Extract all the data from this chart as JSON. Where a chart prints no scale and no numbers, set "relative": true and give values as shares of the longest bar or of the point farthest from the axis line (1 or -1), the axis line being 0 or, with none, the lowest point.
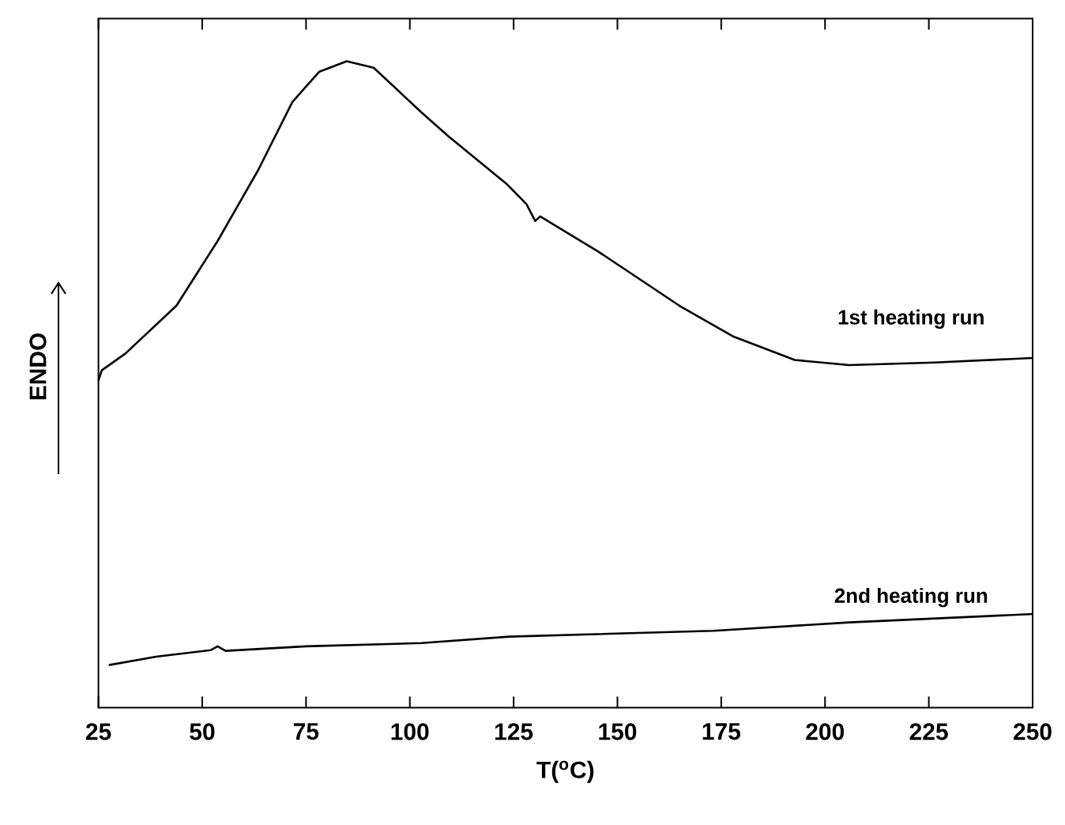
{
  "chart_data": {
    "type": "line",
    "xlabel": "T($^{o}$C)",
    "ylabel": "ENDO",
    "relative": true,
    "xlim": [
      25,
      250
    ],
    "xticks": [
      25,
      50,
      75,
      100,
      125,
      150,
      175,
      200,
      225,
      250
    ],
    "tick_labels": "x",
    "marker": "none",
    "line_style": "solid",
    "series": [
      {
        "name": "1st heating run",
        "color": "#000000",
        "x": [
          25,
          25.8,
          31.5,
          43.8,
          53.7,
          63.5,
          71.7,
          78.2,
          84.8,
          91.3,
          102.8,
          109.3,
          123.2,
          128.1,
          130.2,
          131.4,
          145.3,
          164.9,
          178,
          192.7,
          205.8,
          226.4,
          250
        ],
        "values": [
          0.506,
          0.522,
          0.548,
          0.622,
          0.722,
          0.832,
          0.937,
          0.984,
          1.0,
          0.99,
          0.921,
          0.884,
          0.811,
          0.779,
          0.753,
          0.76,
          0.706,
          0.622,
          0.574,
          0.538,
          0.53,
          0.534,
          0.541
        ]
      },
      {
        "name": "2nd heating run",
        "color": "#000000",
        "x": [
          27.5,
          38.9,
          52.0,
          53.7,
          55.6,
          75,
          102.8,
          124,
          173.1,
          205.8,
          250
        ],
        "values": [
          0.066,
          0.079,
          0.089,
          0.095,
          0.088,
          0.095,
          0.1,
          0.11,
          0.119,
          0.132,
          0.145
        ]
      }
    ]
  }
}
